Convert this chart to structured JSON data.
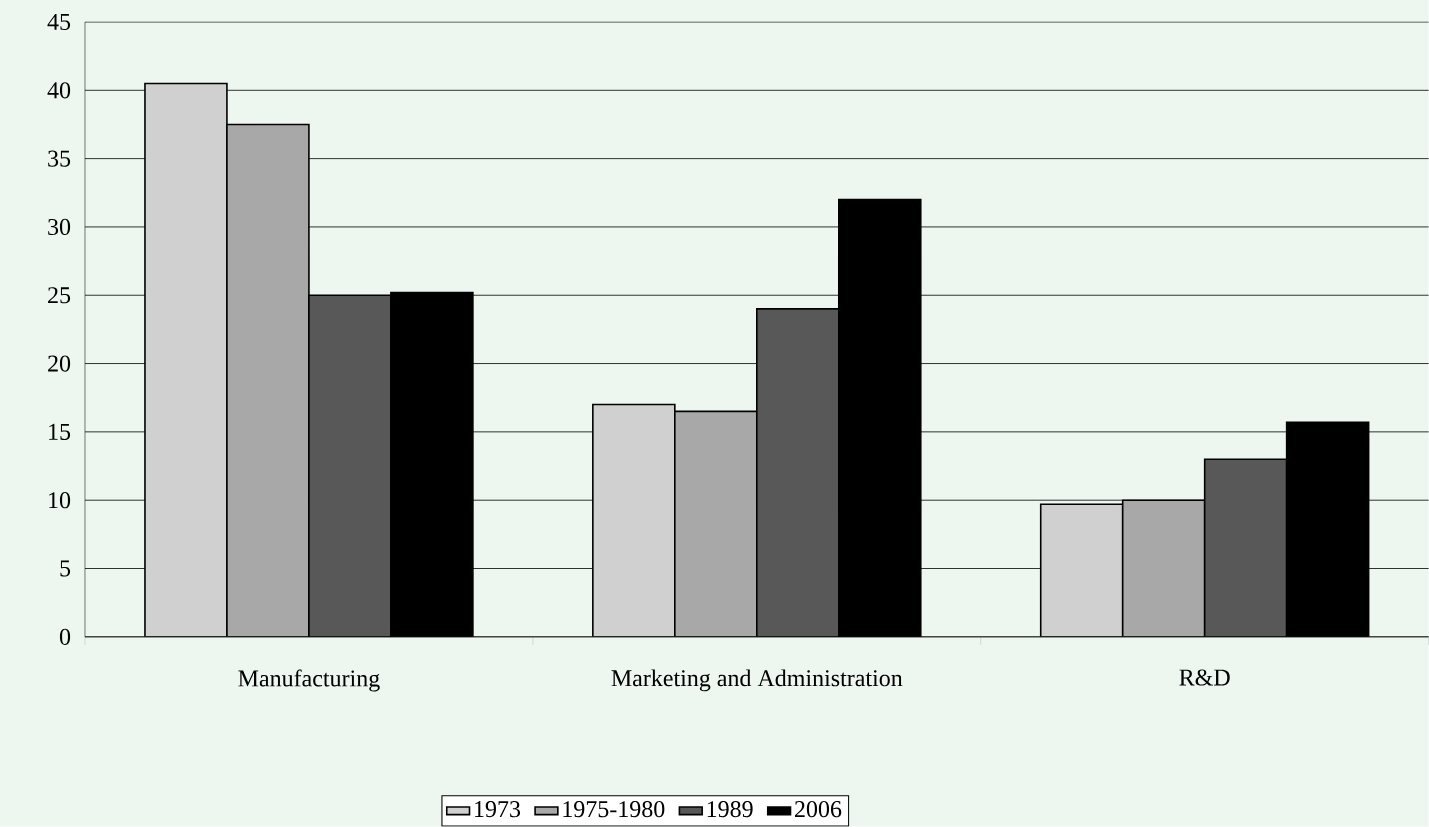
{
  "chart_data": {
    "type": "bar",
    "categories": [
      "Manufacturing",
      "Marketing and Administration",
      "R&D"
    ],
    "series": [
      {
        "name": "1973",
        "color": "#d0d0d0",
        "values": [
          40.5,
          17,
          9.7
        ]
      },
      {
        "name": "1975-1980",
        "color": "#a8a8a8",
        "values": [
          37.5,
          16.5,
          10
        ]
      },
      {
        "name": "1989",
        "color": "#585858",
        "values": [
          25,
          24,
          13
        ]
      },
      {
        "name": "2006",
        "color": "#000000",
        "values": [
          25.2,
          32,
          15.7
        ]
      }
    ],
    "ylim": [
      0,
      45
    ],
    "yticks": [
      0,
      5,
      10,
      15,
      20,
      25,
      30,
      35,
      40,
      45
    ],
    "grid": "y",
    "legend": "bottom"
  }
}
